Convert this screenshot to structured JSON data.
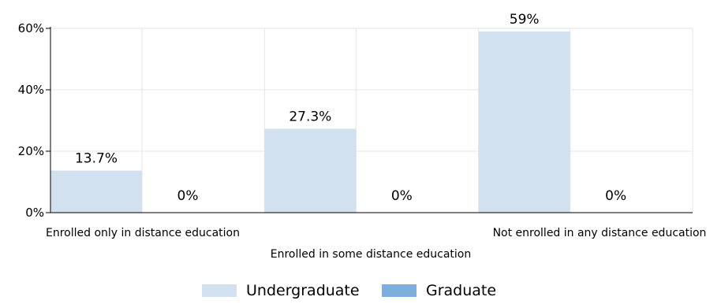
{
  "chart_data": {
    "type": "bar",
    "categories": [
      "Enrolled only in distance education",
      "Enrolled in some distance education",
      "Not enrolled in any distance education"
    ],
    "series": [
      {
        "name": "Undergraduate",
        "values": [
          13.7,
          27.3,
          59
        ],
        "labels": [
          "13.7%",
          "27.3%",
          "59%"
        ],
        "color": "#d2e1f0"
      },
      {
        "name": "Graduate",
        "values": [
          0,
          0,
          0
        ],
        "labels": [
          "0%",
          "0%",
          "0%"
        ],
        "color": "#7eaedc"
      }
    ],
    "y_ticks": [
      {
        "value": 0,
        "label": "0%"
      },
      {
        "value": 20,
        "label": "20%"
      },
      {
        "value": 40,
        "label": "40%"
      },
      {
        "value": 60,
        "label": "60%"
      }
    ],
    "ylim": [
      0,
      60
    ],
    "grid": true,
    "legend_position": "bottom-center",
    "title": "",
    "xlabel": "",
    "ylabel": ""
  }
}
